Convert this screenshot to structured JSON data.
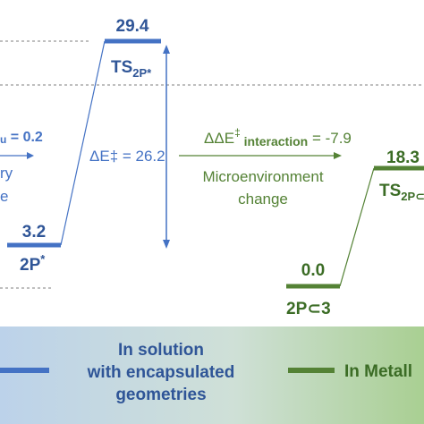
{
  "colors": {
    "blue": "#4472c4",
    "green": "#548235",
    "dashed_line": "#999999",
    "legend_blue_text": "#2f5597",
    "legend_green_text": "#3b6c25"
  },
  "blue_system": {
    "ground_value": "3.2",
    "ground_label_main": "2P",
    "ground_label_sup": "*",
    "ts_value": "29.4",
    "ts_label_main": "TS",
    "ts_label_sub": "2P*",
    "barrier_text": "ΔE‡ = 26.2",
    "left_text_1_sub": "u",
    "left_text_1_rest": " = 0.2",
    "left_text_2": "ry",
    "left_text_3": "e"
  },
  "green_system": {
    "ground_value": "0.0",
    "ground_label": "2P⊂3",
    "ts_value": "18.3",
    "ts_label_main": "TS",
    "ts_label_sub": "2P⊂"
  },
  "transition": {
    "label_main": "ΔΔE",
    "label_sup": "‡",
    "label_sub": " interaction",
    "label_value": " = -7.9",
    "caption_line1": "Microenvironment",
    "caption_line2": "change"
  },
  "legend": {
    "blue_line1": "In solution",
    "blue_line2": "with encapsulated",
    "blue_line3": "geometries",
    "green_text": "In Metall"
  }
}
